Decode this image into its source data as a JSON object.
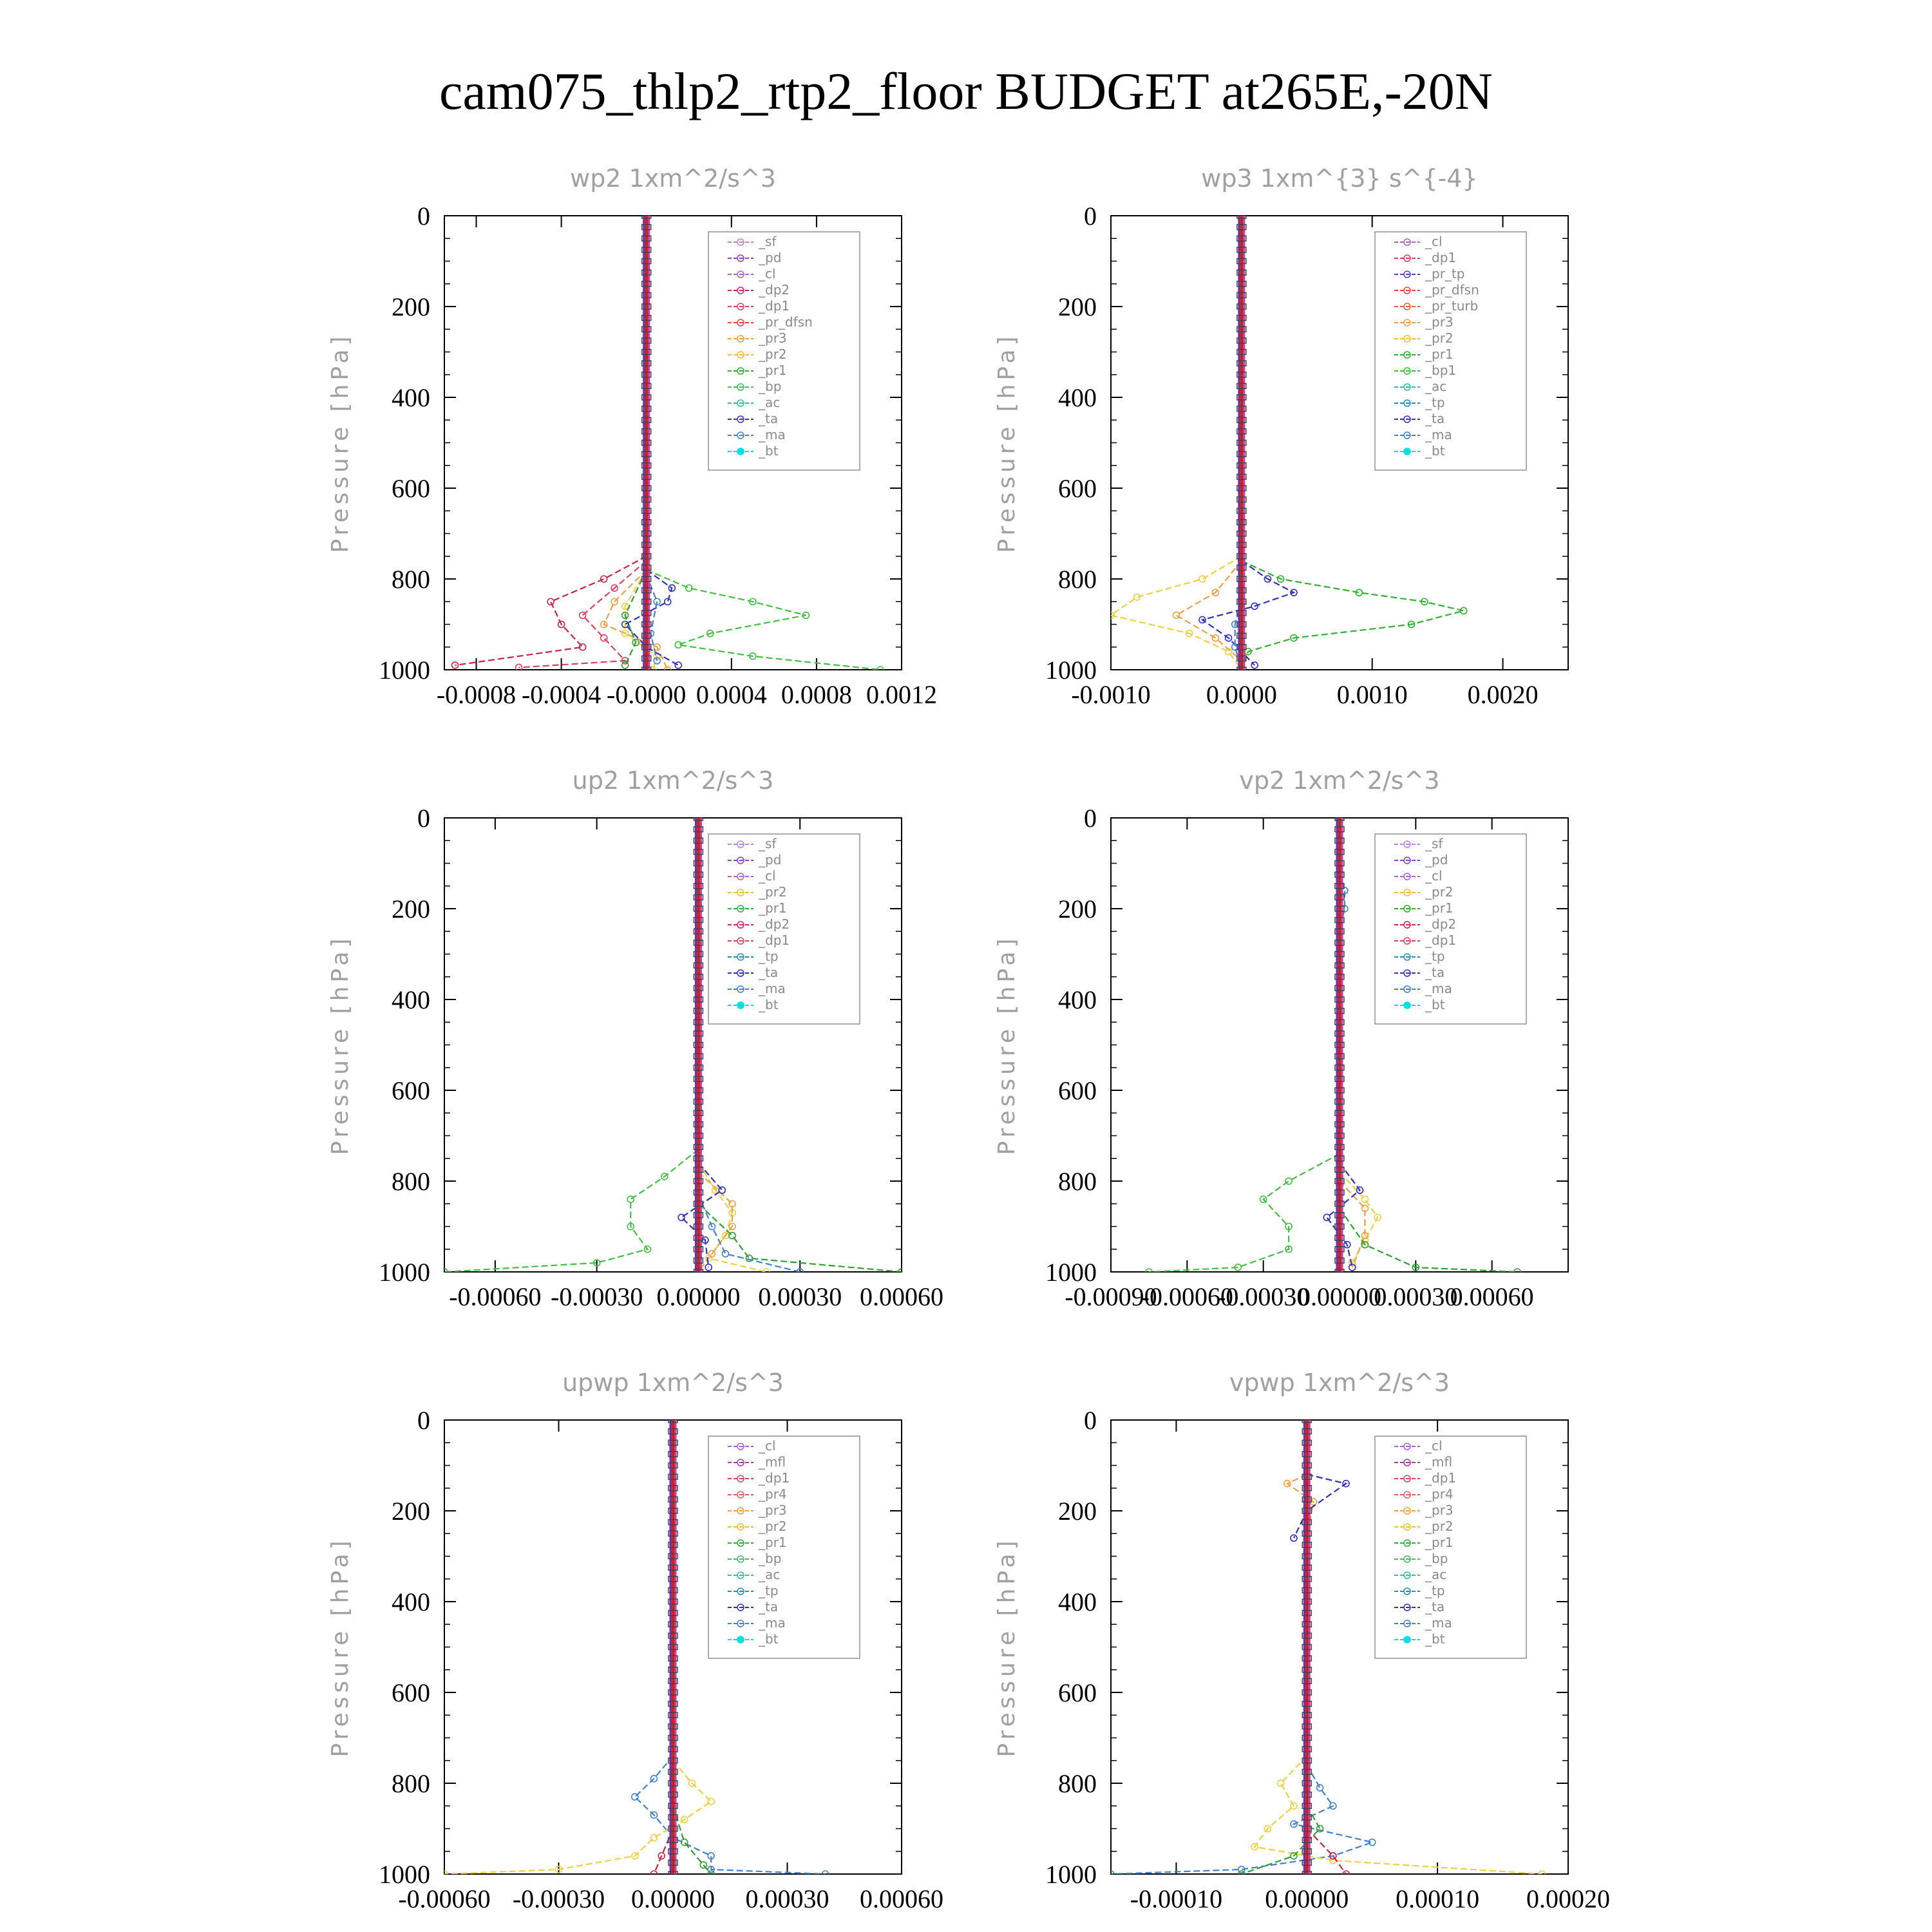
{
  "title": "cam075_thlp2_rtp2_floor  BUDGET at265E,-20N",
  "chart_data": [
    {
      "type": "line",
      "title": "wp2   1xm^2/s^3",
      "ylabel": "Pressure [hPa]",
      "ylim": [
        0,
        1000
      ],
      "y_inverted": true,
      "yticks": [
        "0",
        "200",
        "400",
        "600",
        "800",
        "1000"
      ],
      "xlim": [
        -0.00095,
        0.0012
      ],
      "xticks": [
        -0.0008,
        -0.0004,
        0,
        0.0004,
        0.0008,
        0.0012
      ],
      "xtick_labels": [
        "-0.0008",
        "-0.0004",
        "-0.0000",
        "0.0004",
        "0.0008",
        "0.0012"
      ],
      "legend": [
        "_sf",
        "_pd",
        "_cl",
        "_dp2",
        "_dp1",
        "_pr_dfsn",
        "_pr3",
        "_pr2",
        "_pr1",
        "_bp",
        "_ac",
        "_ta",
        "_ma",
        "_bt"
      ],
      "series": [
        {
          "name": "_dp2",
          "color": "#d02040",
          "p": [
            750,
            800,
            850,
            900,
            950,
            990
          ],
          "v": [
            0,
            -0.0002,
            -0.00045,
            -0.0004,
            -0.0003,
            -0.0009
          ]
        },
        {
          "name": "_dp1",
          "color": "#e04060",
          "p": [
            760,
            820,
            880,
            930,
            980,
            995
          ],
          "v": [
            0,
            -0.00015,
            -0.0003,
            -0.0002,
            -0.0001,
            -0.0006
          ]
        },
        {
          "name": "_pr3",
          "color": "#f0a040",
          "p": [
            780,
            850,
            900,
            950,
            1000
          ],
          "v": [
            0,
            -0.00015,
            -0.0002,
            5e-05,
            0.0001
          ]
        },
        {
          "name": "_pr2",
          "color": "#f0d040",
          "p": [
            780,
            860,
            920,
            970,
            1000
          ],
          "v": [
            0,
            -0.0001,
            -0.0001,
            5e-05,
            3e-05
          ]
        },
        {
          "name": "_bp",
          "color": "#40c040",
          "p": [
            780,
            820,
            850,
            880,
            920,
            945,
            970,
            1000
          ],
          "v": [
            0,
            0.0002,
            0.0005,
            0.00075,
            0.0003,
            0.00015,
            0.0005,
            0.0011
          ]
        },
        {
          "name": "_pr1",
          "color": "#30a030",
          "p": [
            780,
            880,
            940,
            990
          ],
          "v": [
            0,
            -0.0001,
            -5e-05,
            -0.0001
          ]
        },
        {
          "name": "_ta",
          "color": "#3030c0",
          "p": [
            780,
            820,
            850,
            900,
            950,
            990
          ],
          "v": [
            0,
            0.00012,
            0.0001,
            -0.0001,
            0,
            0.00015
          ]
        },
        {
          "name": "_ma",
          "color": "#4080d0",
          "p": [
            790,
            850,
            920,
            980
          ],
          "v": [
            0,
            5e-05,
            2e-05,
            5e-05
          ]
        }
      ]
    },
    {
      "type": "line",
      "title": "wp3   1xm^{3} s^{-4}",
      "ylabel": "Pressure [hPa]",
      "ylim": [
        0,
        1000
      ],
      "y_inverted": true,
      "yticks": [
        "0",
        "200",
        "400",
        "600",
        "800",
        "1000"
      ],
      "xlim": [
        -0.001,
        0.0025
      ],
      "xticks": [
        -0.001,
        0,
        0.001,
        0.002
      ],
      "xtick_labels": [
        "-0.0010",
        "0.0000",
        "0.0010",
        "0.0020"
      ],
      "legend": [
        "_cl",
        "_dp1",
        "_pr_tp",
        "_pr_dfsn",
        "_pr_turb",
        "_pr3",
        "_pr2",
        "_pr1",
        "_bp1",
        "_ac",
        "_tp",
        "_ta",
        "_ma",
        "_bt"
      ],
      "series": [
        {
          "name": "_pr2",
          "color": "#f0d040",
          "p": [
            750,
            800,
            840,
            880,
            920,
            960,
            1000
          ],
          "v": [
            0,
            -0.0003,
            -0.0008,
            -0.001,
            -0.0004,
            -0.0001,
            0
          ]
        },
        {
          "name": "_pr1",
          "color": "#f0a040",
          "p": [
            760,
            830,
            880,
            930,
            980
          ],
          "v": [
            0,
            -0.0002,
            -0.0005,
            -0.0002,
            0
          ]
        },
        {
          "name": "_bp1",
          "color": "#30b030",
          "p": [
            760,
            800,
            830,
            850,
            870,
            900,
            930,
            960,
            1000
          ],
          "v": [
            0,
            0.0003,
            0.0009,
            0.0014,
            0.0017,
            0.0013,
            0.0004,
            5e-05,
            0
          ]
        },
        {
          "name": "_ta",
          "color": "#3030c0",
          "p": [
            760,
            800,
            830,
            860,
            890,
            930,
            990
          ],
          "v": [
            0,
            0.0002,
            0.0004,
            0.0001,
            -0.0003,
            -0.0001,
            0.0001
          ]
        },
        {
          "name": "_tp",
          "color": "#4080d0",
          "p": [
            850,
            900,
            950,
            1000
          ],
          "v": [
            0,
            -5e-05,
            -5e-05,
            0
          ]
        }
      ]
    },
    {
      "type": "line",
      "title": "up2   1xm^2/s^3",
      "ylabel": "Pressure [hPa]",
      "ylim": [
        0,
        1000
      ],
      "y_inverted": true,
      "yticks": [
        "0",
        "200",
        "400",
        "600",
        "800",
        "1000"
      ],
      "xlim": [
        -0.00075,
        0.0006
      ],
      "xticks": [
        -0.0006,
        -0.0003,
        0,
        0.0003,
        0.0006
      ],
      "xtick_labels": [
        "-0.00060",
        "-0.00030",
        "0.00000",
        "0.00030",
        "0.00060"
      ],
      "legend": [
        "_sf",
        "_pd",
        "_cl",
        "_pr2",
        "_pr1",
        "_dp2",
        "_dp1",
        "_tp",
        "_ta",
        "_ma",
        "_bt"
      ],
      "series": [
        {
          "name": "_dp1",
          "color": "#40c040",
          "p": [
            730,
            790,
            840,
            900,
            950,
            980,
            1000
          ],
          "v": [
            0,
            -0.0001,
            -0.0002,
            -0.0002,
            -0.00015,
            -0.0003,
            -0.00075
          ]
        },
        {
          "name": "_pr1",
          "color": "#f0d040",
          "p": [
            760,
            820,
            870,
            920,
            970,
            1000
          ],
          "v": [
            0,
            5e-05,
            0.0001,
            8e-05,
            3e-05,
            0.0002
          ]
        },
        {
          "name": "_pr2",
          "color": "#f0a040",
          "p": [
            780,
            850,
            900,
            960,
            1000
          ],
          "v": [
            0,
            0.0001,
            0.0001,
            4e-05,
            0
          ]
        },
        {
          "name": "_ta",
          "color": "#3030c0",
          "p": [
            760,
            820,
            880,
            930,
            990
          ],
          "v": [
            0,
            7e-05,
            -5e-05,
            2e-05,
            3e-05
          ]
        },
        {
          "name": "_dp2",
          "color": "#30a030",
          "p": [
            850,
            920,
            970,
            1000
          ],
          "v": [
            0,
            0.0001,
            0.00015,
            0.0006
          ]
        },
        {
          "name": "_tp",
          "color": "#4080d0",
          "p": [
            830,
            900,
            960,
            1000
          ],
          "v": [
            0,
            4e-05,
            8e-05,
            0.0003
          ]
        }
      ]
    },
    {
      "type": "line",
      "title": "vp2   1xm^2/s^3",
      "ylabel": "Pressure [hPa]",
      "ylim": [
        0,
        1000
      ],
      "y_inverted": true,
      "yticks": [
        "0",
        "200",
        "400",
        "600",
        "800",
        "1000"
      ],
      "xlim": [
        -0.0009,
        0.0009
      ],
      "xticks": [
        -0.0009,
        -0.0006,
        -0.0003,
        0,
        0.0003,
        0.0006
      ],
      "xtick_labels": [
        "-0.00090",
        "-0.00060",
        "-0.00030",
        "0.00000",
        "0.00030",
        "0.00060"
      ],
      "legend": [
        "_sf",
        "_pd",
        "_cl",
        "_pr2",
        "_pr1",
        "_dp2",
        "_dp1",
        "_tp",
        "_ta",
        "_ma",
        "_bt"
      ],
      "series": [
        {
          "name": "_dp1",
          "color": "#40c040",
          "p": [
            740,
            800,
            840,
            900,
            950,
            990,
            1000
          ],
          "v": [
            0,
            -0.0002,
            -0.0003,
            -0.0002,
            -0.0002,
            -0.0004,
            -0.00075
          ]
        },
        {
          "name": "_pr1",
          "color": "#f0d040",
          "p": [
            780,
            840,
            880,
            930,
            980
          ],
          "v": [
            0,
            0.0001,
            0.00015,
            0.0001,
            5e-05
          ]
        },
        {
          "name": "_pr2",
          "color": "#f0a040",
          "p": [
            800,
            860,
            920,
            990
          ],
          "v": [
            0,
            0.0001,
            0.0001,
            5e-05
          ]
        },
        {
          "name": "_ta",
          "color": "#3030c0",
          "p": [
            760,
            820,
            880,
            940,
            990
          ],
          "v": [
            0,
            8e-05,
            -5e-05,
            3e-05,
            5e-05
          ]
        },
        {
          "name": "_dp2",
          "color": "#30a030",
          "p": [
            860,
            940,
            990,
            1000
          ],
          "v": [
            0,
            0.0001,
            0.0003,
            0.0007
          ]
        },
        {
          "name": "_tp",
          "color": "#4080d0",
          "p": [
            120,
            160,
            200,
            250
          ],
          "v": [
            0,
            2e-05,
            2e-05,
            0
          ]
        }
      ]
    },
    {
      "type": "line",
      "title": "upwp   1xm^2/s^3",
      "ylabel": "Pressure [hPa]",
      "ylim": [
        0,
        1000
      ],
      "y_inverted": true,
      "yticks": [
        "0",
        "200",
        "400",
        "600",
        "800",
        "1000"
      ],
      "xlim": [
        -0.0006,
        0.0006
      ],
      "xticks": [
        -0.0006,
        -0.0003,
        0,
        0.0003,
        0.0006
      ],
      "xtick_labels": [
        "-0.00060",
        "-0.00030",
        "0.00000",
        "0.00030",
        "0.00060"
      ],
      "legend": [
        "_cl",
        "_mfl",
        "_dp1",
        "_pr4",
        "_pr3",
        "_pr2",
        "_pr1",
        "_bp",
        "_ac",
        "_tp",
        "_ta",
        "_ma",
        "_bt"
      ],
      "series": [
        {
          "name": "_tp",
          "color": "#4080d0",
          "p": [
            740,
            790,
            830,
            870,
            920,
            960,
            990,
            1000
          ],
          "v": [
            0,
            -5e-05,
            -0.0001,
            -5e-05,
            0,
            0.0001,
            0.0001,
            0.0004
          ]
        },
        {
          "name": "_pr1",
          "color": "#f0d040",
          "p": [
            750,
            800,
            840,
            880,
            920,
            960,
            990,
            1000
          ],
          "v": [
            0,
            5e-05,
            0.0001,
            3e-05,
            -5e-05,
            -0.0001,
            -0.0003,
            -0.0006
          ]
        },
        {
          "name": "_bp",
          "color": "#30a030",
          "p": [
            850,
            930,
            980,
            1000
          ],
          "v": [
            0,
            3e-05,
            8e-05,
            0.0001
          ]
        },
        {
          "name": "_dp1",
          "color": "#d02040",
          "p": [
            900,
            960,
            1000
          ],
          "v": [
            0,
            -3e-05,
            -5e-05
          ]
        }
      ]
    },
    {
      "type": "line",
      "title": "vpwp   1xm^2/s^3",
      "ylabel": "Pressure [hPa]",
      "ylim": [
        0,
        1000
      ],
      "y_inverted": true,
      "yticks": [
        "0",
        "200",
        "400",
        "600",
        "800",
        "1000"
      ],
      "xlim": [
        -0.00015,
        0.0002
      ],
      "xticks": [
        -0.0001,
        0,
        0.0001,
        0.0002
      ],
      "xtick_labels": [
        "-0.00010",
        "0.00000",
        "0.00010",
        "0.00020"
      ],
      "legend": [
        "_cl",
        "_mfl",
        "_dp1",
        "_pr4",
        "_pr3",
        "_pr2",
        "_pr1",
        "_bp",
        "_ac",
        "_tp",
        "_ta",
        "_ma",
        "_bt"
      ],
      "series": [
        {
          "name": "_tp",
          "color": "#4080d0",
          "p": [
            760,
            810,
            850,
            890,
            930,
            960,
            990,
            1000
          ],
          "v": [
            0,
            1e-05,
            2e-05,
            -1e-05,
            5e-05,
            2e-05,
            -5e-05,
            -0.00015
          ]
        },
        {
          "name": "_pr1",
          "color": "#f0d040",
          "p": [
            740,
            800,
            850,
            900,
            940,
            970,
            1000
          ],
          "v": [
            0,
            -2e-05,
            -1e-05,
            -3e-05,
            -4e-05,
            2e-05,
            0.00018
          ]
        },
        {
          "name": "_pr2",
          "color": "#f0a040",
          "p": [
            120,
            140,
            180,
            260
          ],
          "v": [
            0,
            -1.5e-05,
            5e-06,
            0
          ]
        },
        {
          "name": "_ta",
          "color": "#3030c0",
          "p": [
            120,
            140,
            200,
            260
          ],
          "v": [
            0,
            3e-05,
            0,
            -1e-05
          ]
        },
        {
          "name": "_bp",
          "color": "#30a030",
          "p": [
            850,
            900,
            960,
            1000
          ],
          "v": [
            0,
            1e-05,
            -1e-05,
            -5e-05
          ]
        },
        {
          "name": "_dp1",
          "color": "#d02040",
          "p": [
            900,
            960,
            1000
          ],
          "v": [
            0,
            2e-05,
            3e-05
          ]
        }
      ]
    }
  ]
}
